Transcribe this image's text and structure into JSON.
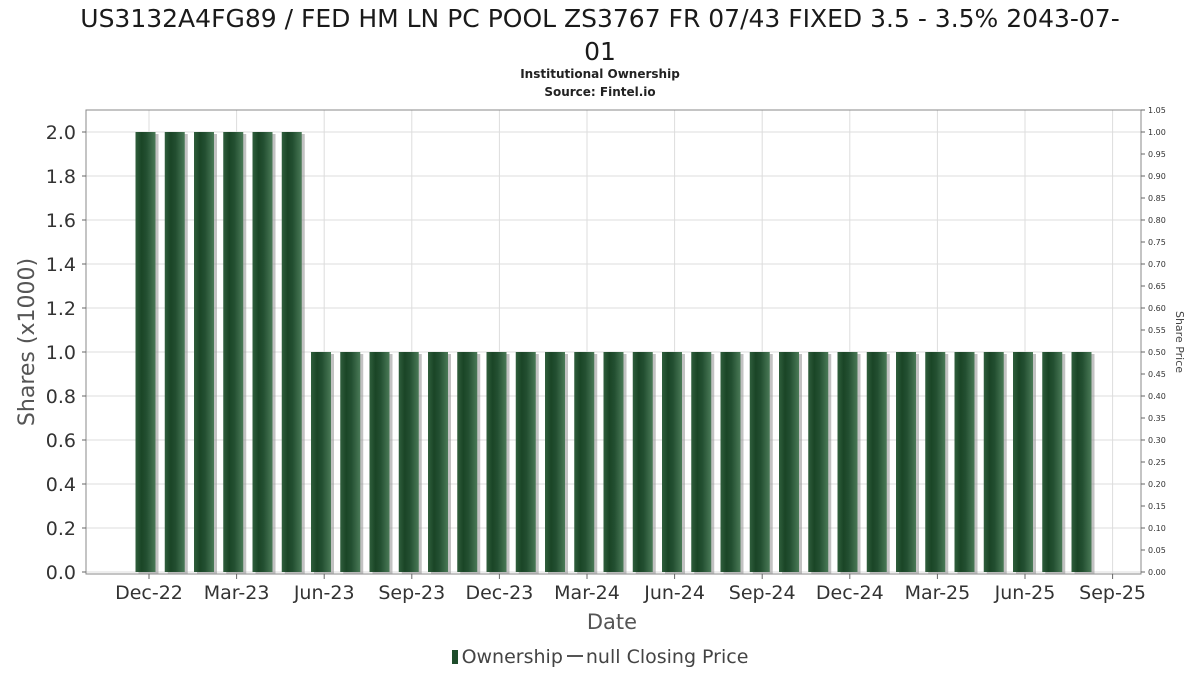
{
  "title_lines": [
    "US3132A4FG89 / FED HM LN PC POOL ZS3767 FR 07/43 FIXED 3.5 - 3.5% 2043-07-",
    "01"
  ],
  "subtitle": "Institutional Ownership",
  "source": "Source: Fintel.io",
  "legend": {
    "ownership": "Ownership",
    "price": "null Closing Price"
  },
  "colors": {
    "bar": "#1e4d2b",
    "bar_highlight": "#3d6b4a",
    "bar_shadow": "#9a9a9a",
    "grid": "#dddddd"
  },
  "chart_data": {
    "type": "bar",
    "xlabel": "Date",
    "ylabel": "Shares (x1000)",
    "y2label": "Share Price",
    "ylim": [
      0,
      2.1
    ],
    "y2lim": [
      0,
      1.05
    ],
    "yticks": [
      "0.0",
      "0.2",
      "0.4",
      "0.6",
      "0.8",
      "1.0",
      "1.2",
      "1.4",
      "1.6",
      "1.8",
      "2.0"
    ],
    "y2ticks": [
      "0.00",
      "0.05",
      "0.10",
      "0.15",
      "0.20",
      "0.25",
      "0.30",
      "0.35",
      "0.40",
      "0.45",
      "0.50",
      "0.55",
      "0.60",
      "0.65",
      "0.70",
      "0.75",
      "0.80",
      "0.85",
      "0.90",
      "0.95",
      "1.00",
      "1.05"
    ],
    "xticks": [
      "Dec-22",
      "Mar-23",
      "Jun-23",
      "Sep-23",
      "Dec-23",
      "Mar-24",
      "Jun-24",
      "Sep-24",
      "Dec-24",
      "Mar-25",
      "Jun-25",
      "Sep-25"
    ],
    "grid": true,
    "values": [
      2.0,
      2.0,
      2.0,
      2.0,
      2.0,
      2.0,
      1.0,
      1.0,
      1.0,
      1.0,
      1.0,
      1.0,
      1.0,
      1.0,
      1.0,
      1.0,
      1.0,
      1.0,
      1.0,
      1.0,
      1.0,
      1.0,
      1.0,
      1.0,
      1.0,
      1.0,
      1.0,
      1.0,
      1.0,
      1.0,
      1.0,
      1.0,
      1.0
    ],
    "legend_position": "bottom"
  }
}
